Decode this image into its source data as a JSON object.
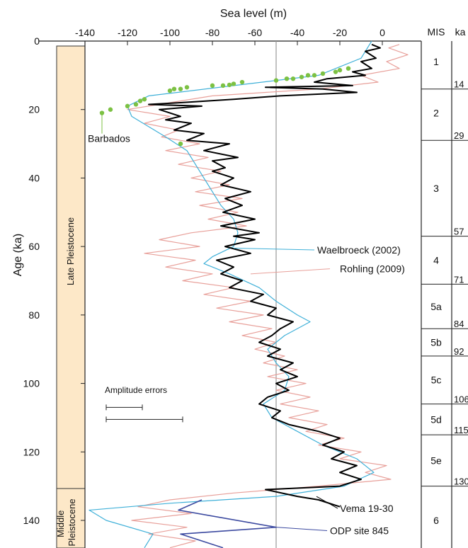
{
  "chart_data": {
    "type": "line",
    "xlabel": "Sea level (m)",
    "ylabel": "Age (ka)",
    "xlim": [
      -140,
      20
    ],
    "ylim": [
      0,
      150
    ],
    "x_ticks": [
      -140,
      -120,
      -100,
      -80,
      -60,
      -40,
      -20,
      0
    ],
    "y_ticks": [
      0,
      20,
      40,
      60,
      80,
      100,
      120,
      140
    ],
    "vertical_reference_line": -50,
    "epochs": [
      {
        "label": "Late Pleistocene",
        "from": 1,
        "to": 127
      },
      {
        "label": "Middle Pleistocene",
        "from": 127,
        "to": 150
      }
    ],
    "mis_header": "MIS",
    "ka_header": "ka",
    "mis_boundaries": [
      {
        "age": 14,
        "label": "14"
      },
      {
        "age": 29,
        "label": "29"
      },
      {
        "age": 57,
        "label": "57"
      },
      {
        "age": 71,
        "label": "71"
      },
      {
        "age": 84,
        "label": "84"
      },
      {
        "age": 92,
        "label": "92"
      },
      {
        "age": 106,
        "label": "106"
      },
      {
        "age": 115,
        "label": "115"
      },
      {
        "age": 130,
        "label": "130"
      }
    ],
    "mis_stages": [
      {
        "label": "1",
        "age": 6
      },
      {
        "label": "2",
        "age": 21
      },
      {
        "label": "3",
        "age": 43
      },
      {
        "label": "4",
        "age": 64
      },
      {
        "label": "5a",
        "age": 77.5
      },
      {
        "label": "5b",
        "age": 88
      },
      {
        "label": "5c",
        "age": 99
      },
      {
        "label": "5d",
        "age": 110.5
      },
      {
        "label": "5e",
        "age": 122.5
      },
      {
        "label": "6",
        "age": 140
      }
    ],
    "annotations": [
      {
        "text": "Barbados"
      },
      {
        "text": "Waelbroeck (2002)"
      },
      {
        "text": "Rohling (2009)"
      },
      {
        "text": "Vema 19-30"
      },
      {
        "text": "ODP site 845"
      },
      {
        "text": "Amplitude errors"
      }
    ],
    "amplitude_errors": [
      {
        "from": -130,
        "to": -113
      },
      {
        "from": -130,
        "to": -94
      }
    ],
    "series": [
      {
        "name": "Vema 19-30",
        "color": "#000000",
        "points": [
          [
            -5,
            1
          ],
          [
            -1,
            2
          ],
          [
            -8,
            3
          ],
          [
            -3,
            5
          ],
          [
            -10,
            6
          ],
          [
            -5,
            8
          ],
          [
            -14,
            9
          ],
          [
            -8,
            10
          ],
          [
            -26,
            11
          ],
          [
            -32,
            12
          ],
          [
            -14,
            13
          ],
          [
            -55,
            13.5
          ],
          [
            -28,
            14
          ],
          [
            -12,
            15
          ],
          [
            -48,
            16
          ],
          [
            -70,
            17
          ],
          [
            -95,
            18
          ],
          [
            -110,
            18.5
          ],
          [
            -85,
            19
          ],
          [
            -105,
            20
          ],
          [
            -95,
            22
          ],
          [
            -102,
            23
          ],
          [
            -90,
            24
          ],
          [
            -98,
            26
          ],
          [
            -84,
            27
          ],
          [
            -92,
            29
          ],
          [
            -72,
            30
          ],
          [
            -84,
            32
          ],
          [
            -68,
            34
          ],
          [
            -80,
            35
          ],
          [
            -74,
            37
          ],
          [
            -80,
            38
          ],
          [
            -70,
            40
          ],
          [
            -76,
            42
          ],
          [
            -62,
            44
          ],
          [
            -74,
            46
          ],
          [
            -66,
            48
          ],
          [
            -75,
            50
          ],
          [
            -60,
            52
          ],
          [
            -76,
            54
          ],
          [
            -58,
            56
          ],
          [
            -70,
            57
          ],
          [
            -60,
            58
          ],
          [
            -74,
            60
          ],
          [
            -62,
            62
          ],
          [
            -78,
            64
          ],
          [
            -70,
            66
          ],
          [
            -76,
            68
          ],
          [
            -66,
            70
          ],
          [
            -72,
            72
          ],
          [
            -56,
            74
          ],
          [
            -62,
            76
          ],
          [
            -50,
            78
          ],
          [
            -54,
            80
          ],
          [
            -42,
            82
          ],
          [
            -48,
            84
          ],
          [
            -52,
            86
          ],
          [
            -58,
            88
          ],
          [
            -48,
            90
          ],
          [
            -54,
            92
          ],
          [
            -42,
            94
          ],
          [
            -48,
            96
          ],
          [
            -40,
            98
          ],
          [
            -50,
            100
          ],
          [
            -44,
            102
          ],
          [
            -54,
            104
          ],
          [
            -58,
            106
          ],
          [
            -48,
            108
          ],
          [
            -52,
            110
          ],
          [
            -44,
            112
          ],
          [
            -30,
            114
          ],
          [
            -20,
            116
          ],
          [
            -28,
            118
          ],
          [
            -18,
            120
          ],
          [
            -24,
            122
          ],
          [
            -12,
            124
          ],
          [
            -20,
            126
          ],
          [
            -10,
            128
          ],
          [
            -20,
            130
          ],
          [
            -55,
            131
          ],
          [
            -40,
            133
          ],
          [
            -30,
            134
          ],
          [
            -20,
            136
          ]
        ]
      },
      {
        "name": "Rohling (2009)",
        "color": "#e8a09a",
        "points": [
          [
            8,
            1
          ],
          [
            3,
            2
          ],
          [
            12,
            4
          ],
          [
            2,
            6
          ],
          [
            8,
            8
          ],
          [
            -10,
            10
          ],
          [
            -2,
            12
          ],
          [
            -30,
            14
          ],
          [
            -55,
            15
          ],
          [
            -80,
            16
          ],
          [
            -100,
            18
          ],
          [
            -120,
            20
          ],
          [
            -100,
            22
          ],
          [
            -112,
            24
          ],
          [
            -96,
            26
          ],
          [
            -104,
            28
          ],
          [
            -86,
            30
          ],
          [
            -102,
            32
          ],
          [
            -82,
            34
          ],
          [
            -96,
            36
          ],
          [
            -76,
            38
          ],
          [
            -90,
            40
          ],
          [
            -72,
            42
          ],
          [
            -88,
            44
          ],
          [
            -66,
            46
          ],
          [
            -86,
            48
          ],
          [
            -68,
            50
          ],
          [
            -82,
            52
          ],
          [
            -64,
            54
          ],
          [
            -90,
            56
          ],
          [
            -105,
            58
          ],
          [
            -86,
            60
          ],
          [
            -112,
            62
          ],
          [
            -88,
            64
          ],
          [
            -102,
            66
          ],
          [
            -80,
            68
          ],
          [
            -94,
            70
          ],
          [
            -70,
            72
          ],
          [
            -84,
            74
          ],
          [
            -62,
            76
          ],
          [
            -78,
            78
          ],
          [
            -56,
            80
          ],
          [
            -72,
            82
          ],
          [
            -52,
            84
          ],
          [
            -66,
            86
          ],
          [
            -50,
            88
          ],
          [
            -60,
            90
          ],
          [
            -46,
            92
          ],
          [
            -56,
            94
          ],
          [
            -40,
            96
          ],
          [
            -54,
            98
          ],
          [
            -36,
            100
          ],
          [
            -50,
            102
          ],
          [
            -34,
            104
          ],
          [
            -48,
            106
          ],
          [
            -30,
            108
          ],
          [
            -44,
            110
          ],
          [
            -26,
            112
          ],
          [
            -36,
            114
          ],
          [
            -18,
            116
          ],
          [
            -30,
            118
          ],
          [
            -10,
            120
          ],
          [
            -20,
            122
          ],
          [
            2,
            124
          ],
          [
            -8,
            126
          ],
          [
            4,
            128
          ],
          [
            -30,
            130
          ],
          [
            -70,
            132
          ],
          [
            -100,
            134
          ],
          [
            -115,
            136
          ],
          [
            -90,
            138
          ],
          [
            -118,
            140
          ],
          [
            -92,
            142
          ],
          [
            -110,
            144
          ],
          [
            -88,
            146
          ],
          [
            -100,
            148
          ]
        ]
      },
      {
        "name": "Waelbroeck (2002)",
        "color": "#3fb0d8",
        "points": [
          [
            -5,
            0
          ],
          [
            -10,
            5
          ],
          [
            -30,
            10
          ],
          [
            -70,
            13
          ],
          [
            -110,
            16
          ],
          [
            -120,
            19
          ],
          [
            -118,
            22
          ],
          [
            -110,
            25
          ],
          [
            -102,
            28
          ],
          [
            -92,
            32
          ],
          [
            -86,
            38
          ],
          [
            -80,
            44
          ],
          [
            -76,
            48
          ],
          [
            -70,
            52
          ],
          [
            -68,
            56
          ],
          [
            -70,
            60
          ],
          [
            -80,
            63
          ],
          [
            -84,
            65
          ],
          [
            -72,
            68
          ],
          [
            -58,
            72
          ],
          [
            -50,
            76
          ],
          [
            -40,
            80
          ],
          [
            -34,
            82
          ],
          [
            -46,
            86
          ],
          [
            -54,
            90
          ],
          [
            -50,
            94
          ],
          [
            -44,
            98
          ],
          [
            -46,
            102
          ],
          [
            -56,
            106
          ],
          [
            -52,
            110
          ],
          [
            -40,
            114
          ],
          [
            -28,
            118
          ],
          [
            -12,
            122
          ],
          [
            -4,
            126
          ],
          [
            -18,
            130
          ],
          [
            -50,
            133
          ],
          [
            -100,
            135
          ],
          [
            -138,
            137
          ],
          [
            -130,
            140
          ],
          [
            -108,
            144
          ],
          [
            -112,
            148
          ]
        ]
      },
      {
        "name": "ODP site 845",
        "color": "#3c4aa0",
        "points": [
          [
            -85,
            134
          ],
          [
            -96,
            137
          ],
          [
            -50,
            142
          ],
          [
            -95,
            144
          ],
          [
            -75,
            148
          ]
        ]
      },
      {
        "name": "Barbados",
        "color": "#7cc143",
        "points": [
          [
            -132,
            21
          ],
          [
            -128,
            20
          ],
          [
            -120,
            19
          ],
          [
            -116,
            18.5
          ],
          [
            -114,
            17.5
          ],
          [
            -112,
            17
          ],
          [
            -100,
            14.5
          ],
          [
            -98,
            14
          ],
          [
            -95,
            14
          ],
          [
            -92,
            13.5
          ],
          [
            -80,
            13
          ],
          [
            -75,
            13
          ],
          [
            -72,
            12.8
          ],
          [
            -70,
            12.5
          ],
          [
            -66,
            12
          ],
          [
            -50,
            11.5
          ],
          [
            -45,
            11
          ],
          [
            -42,
            11
          ],
          [
            -38,
            10.5
          ],
          [
            -35,
            10
          ],
          [
            -32,
            10
          ],
          [
            -28,
            9.5
          ],
          [
            -22,
            9
          ],
          [
            -20,
            8.5
          ],
          [
            -16,
            8
          ],
          [
            -95,
            30
          ]
        ]
      }
    ]
  }
}
